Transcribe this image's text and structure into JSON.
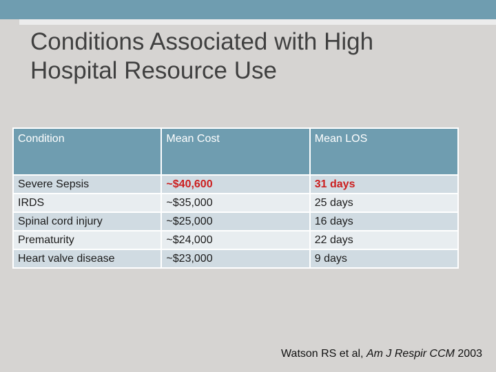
{
  "slide": {
    "title_line1": "Conditions Associated with High",
    "title_line2": "Hospital Resource Use"
  },
  "table": {
    "headers": [
      "Condition",
      "Mean Cost",
      "Mean LOS"
    ],
    "rows": [
      {
        "condition": "Severe Sepsis",
        "cost": "~$40,600",
        "los": "31 days",
        "highlight": true
      },
      {
        "condition": "IRDS",
        "cost": "~$35,000",
        "los": "25 days"
      },
      {
        "condition": "Spinal cord injury",
        "cost": "~$25,000",
        "los": "16 days"
      },
      {
        "condition": "Prematurity",
        "cost": "~$24,000",
        "los": "22 days"
      },
      {
        "condition": "Heart valve disease",
        "cost": "~$23,000",
        "los": "9 days"
      }
    ]
  },
  "citation": {
    "authors": "Watson RS et al,",
    "journal": "Am J Respir CCM",
    "year": "2003"
  },
  "colors": {
    "header_bg": "#6f9db0",
    "row_odd": "#d0dbe2",
    "row_even": "#e8edf0",
    "highlight_text": "#cc1e1e",
    "background": "#d6d4d2"
  }
}
